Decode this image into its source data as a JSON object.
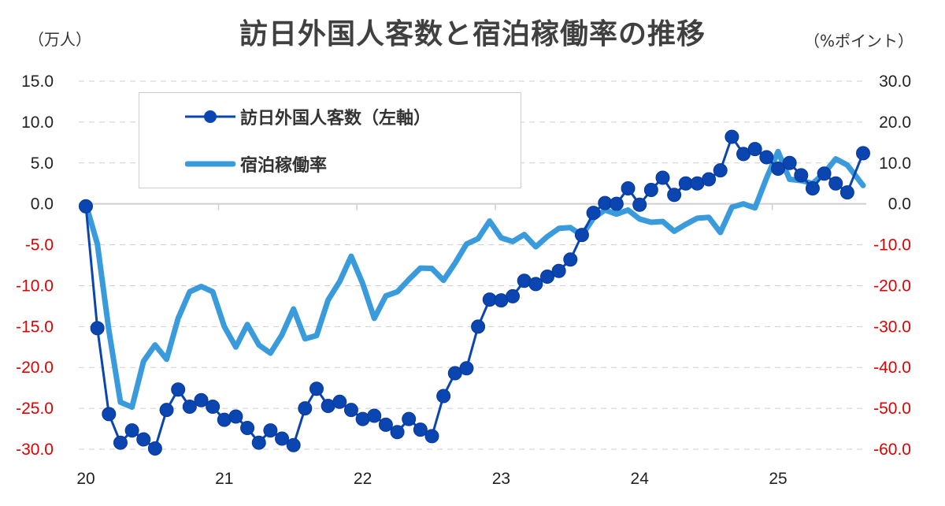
{
  "title": "訪日外国人客数と宿泊稼働率の推移",
  "left_unit": "（万人）",
  "right_unit": "（%ポイント）",
  "legend": {
    "visitors": "訪日外国人客数（左軸）",
    "occupancy": "宿泊稼働率"
  },
  "colors": {
    "visitors": "#0A45B0",
    "occupancy": "#3A9BDC",
    "negative_tick": "#E00000",
    "positive_tick": "#222222",
    "grid": "#CFCFCF"
  },
  "chart_data": {
    "type": "line",
    "title": "訪日外国人客数と宿泊稼働率の推移",
    "xlabel": "",
    "ylabel": "（万人）",
    "ylabel_right": "（%ポイント）",
    "x_tick_labels": [
      "20",
      "21",
      "22",
      "23",
      "24",
      "25"
    ],
    "left_axis_ticks": [
      "15.0",
      "10.0",
      "5.0",
      "0.0",
      "-5.0",
      "-10.0",
      "-15.0",
      "-20.0",
      "-25.0",
      "-30.0"
    ],
    "right_axis_ticks": [
      "30.0",
      "20.0",
      "10.0",
      "0.0",
      "-10.0",
      "-20.0",
      "-30.0",
      "-40.0",
      "-50.0",
      "-60.0"
    ],
    "ylim": [
      -30,
      15
    ],
    "ylim_right": [
      -60,
      30
    ],
    "grid": true,
    "legend_position": "upper-left",
    "x": [
      "2020-01",
      "2020-02",
      "2020-03",
      "2020-04",
      "2020-05",
      "2020-06",
      "2020-07",
      "2020-08",
      "2020-09",
      "2020-10",
      "2020-11",
      "2020-12",
      "2021-01",
      "2021-02",
      "2021-03",
      "2021-04",
      "2021-05",
      "2021-06",
      "2021-07",
      "2021-08",
      "2021-09",
      "2021-10",
      "2021-11",
      "2021-12",
      "2022-01",
      "2022-02",
      "2022-03",
      "2022-04",
      "2022-05",
      "2022-06",
      "2022-07",
      "2022-08",
      "2022-09",
      "2022-10",
      "2022-11",
      "2022-12",
      "2023-01",
      "2023-02",
      "2023-03",
      "2023-04",
      "2023-05",
      "2023-06",
      "2023-07",
      "2023-08",
      "2023-09",
      "2023-10",
      "2023-11",
      "2023-12",
      "2024-01",
      "2024-02",
      "2024-03",
      "2024-04",
      "2024-05",
      "2024-06",
      "2024-07",
      "2024-08",
      "2024-09",
      "2024-10",
      "2024-11",
      "2024-12",
      "2025-01",
      "2025-02",
      "2025-03",
      "2025-04",
      "2025-05",
      "2025-06",
      "2025-07",
      "2025-08"
    ],
    "series": [
      {
        "name": "訪日外国人客数（左軸）",
        "axis": "left",
        "marker": "circle",
        "values": [
          -0.3,
          -15.2,
          -25.7,
          -29.2,
          -27.7,
          -28.8,
          -29.9,
          -25.2,
          -22.7,
          -24.8,
          -24.0,
          -24.8,
          -26.4,
          -26.0,
          -27.4,
          -29.2,
          -27.7,
          -28.7,
          -29.5,
          -25.0,
          -22.6,
          -24.7,
          -24.2,
          -25.2,
          -26.3,
          -25.9,
          -27.0,
          -27.9,
          -26.3,
          -27.6,
          -28.4,
          -23.5,
          -20.7,
          -20.1,
          -15.0,
          -11.7,
          -11.8,
          -11.3,
          -9.4,
          -9.8,
          -8.9,
          -8.2,
          -6.8,
          -3.8,
          -1.1,
          0.1,
          0.0,
          1.9,
          -0.1,
          1.7,
          3.2,
          1.1,
          2.5,
          2.5,
          3.0,
          4.1,
          8.2,
          6.1,
          6.7,
          5.7,
          4.3,
          5.0,
          3.5,
          1.9,
          3.7,
          2.5,
          1.4,
          6.2
        ]
      },
      {
        "name": "宿泊稼働率",
        "axis": "right",
        "marker": "none",
        "values": [
          0,
          -9.8,
          -31,
          -48.5,
          -49.7,
          -38.5,
          -34.5,
          -38,
          -28,
          -21.5,
          -20.2,
          -21.5,
          -30,
          -35,
          -29.5,
          -34.5,
          -36.5,
          -32,
          -25.7,
          -33,
          -32.2,
          -23.5,
          -19,
          -12.8,
          -19.5,
          -28,
          -22.5,
          -21.5,
          -18.5,
          -15.7,
          -15.8,
          -18.7,
          -14.5,
          -9.8,
          -8.5,
          -4.2,
          -8.3,
          -9.2,
          -7.5,
          -10.5,
          -8,
          -6,
          -5.8,
          -7.7,
          -3.5,
          -1.5,
          -2.5,
          -1.5,
          -3.7,
          -4.5,
          -4.3,
          -6.7,
          -5,
          -3.5,
          -3.3,
          -7,
          -0.8,
          0,
          -1,
          6.3,
          12.8,
          6,
          5.7,
          5,
          7.5,
          11,
          9.5,
          4.5
        ]
      }
    ]
  }
}
